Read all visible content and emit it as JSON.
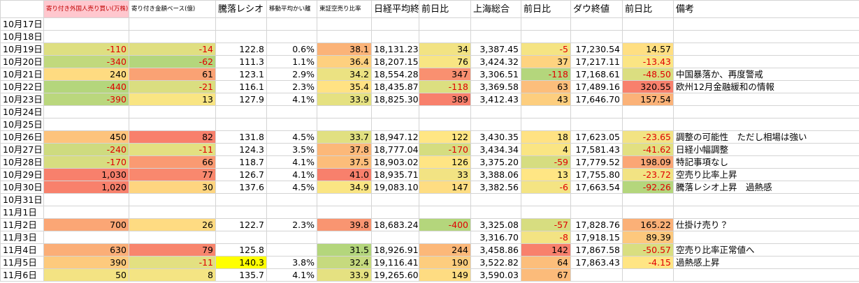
{
  "table": {
    "header": [
      null,
      "寄り付き外国人売り買い(万株)",
      "寄り付き金額ベース(億)",
      "騰落レシオ",
      "移動平均かい離",
      "東証空売り比率",
      "日経平均終値",
      "前日比",
      "上海総合",
      "前日比",
      "ダウ終値",
      "前日比",
      "備考"
    ],
    "header_fill": {
      "col": 1,
      "color": "#ffc7ce",
      "text_color": "#c00000"
    },
    "rows": [
      [
        "10月17日",
        null,
        null,
        null,
        null,
        null,
        null,
        null,
        null,
        null,
        null,
        null,
        null
      ],
      [
        "10月18日",
        null,
        null,
        null,
        null,
        null,
        null,
        null,
        null,
        null,
        null,
        null,
        null
      ],
      [
        "10月19日",
        "-110",
        "-14",
        "122.8",
        "0.6%",
        "38.1",
        "18,131.23",
        "34",
        "3,387.45",
        "-5",
        "17,230.54",
        "14.57",
        null
      ],
      [
        "10月20日",
        "-340",
        "-62",
        "111.3",
        "1.1%",
        "36.4",
        "18,207.15",
        "76",
        "3,424.32",
        "37",
        "17,217.11",
        "-13.43",
        null
      ],
      [
        "10月21日",
        "240",
        "61",
        "123.1",
        "2.9%",
        "34.2",
        "18,554.28",
        "347",
        "3,306.51",
        "-118",
        "17,168.61",
        "-48.50",
        "中国暴落か、再度警戒"
      ],
      [
        "10月22日",
        "-440",
        "-21",
        "116.1",
        "2.3%",
        "35.4",
        "18,435.87",
        "-118",
        "3,369.58",
        "63",
        "17,489.16",
        "320.55",
        "欧州12月金融緩和の情報"
      ],
      [
        "10月23日",
        "-390",
        "13",
        "127.9",
        "4.1%",
        "33.9",
        "18,825.30",
        "389",
        "3,412.43",
        "43",
        "17,646.70",
        "157.54",
        null
      ],
      [
        "10月24日",
        null,
        null,
        null,
        null,
        null,
        null,
        null,
        null,
        null,
        null,
        null,
        null
      ],
      [
        "10月25日",
        null,
        null,
        null,
        null,
        null,
        null,
        null,
        null,
        null,
        null,
        null,
        null
      ],
      [
        "10月26日",
        "450",
        "82",
        "131.8",
        "4.5%",
        "33.7",
        "18,947.12",
        "122",
        "3,430.35",
        "18",
        "17,623.05",
        "-23.65",
        "調整の可能性　ただし相場は強い"
      ],
      [
        "10月27日",
        "-240",
        "-11",
        "124.3",
        "3.5%",
        "37.8",
        "18,777.04",
        "-170",
        "3,434.34",
        "4",
        "17,581.43",
        "-41.62",
        "日経小幅調整"
      ],
      [
        "10月28日",
        "-170",
        "66",
        "118.7",
        "4.1%",
        "37.5",
        "18,903.02",
        "126",
        "3,375.20",
        "-59",
        "17,779.52",
        "198.09",
        "特記事項なし"
      ],
      [
        "10月29日",
        "1,030",
        "77",
        "126.7",
        "4.1%",
        "41.0",
        "18,935.71",
        "33",
        "3,388.06",
        "13",
        "17,755.80",
        "-23.72",
        "空売り比率上昇"
      ],
      [
        "10月30日",
        "1,020",
        "30",
        "137.6",
        "4.5%",
        "34.9",
        "19,083.10",
        "147",
        "3,382.56",
        "-6",
        "17,663.54",
        "-92.26",
        "騰落レシオ上昇　過熱感"
      ],
      [
        "10月31日",
        null,
        null,
        null,
        null,
        null,
        null,
        null,
        null,
        null,
        null,
        null,
        null
      ],
      [
        "11月1日",
        null,
        null,
        null,
        null,
        null,
        null,
        null,
        null,
        null,
        null,
        null,
        null
      ],
      [
        "11月2日",
        "700",
        "26",
        "122.7",
        "2.3%",
        "39.8",
        "18,683.24",
        "-400",
        "3,325.08",
        "-57",
        "17,828.76",
        "165.22",
        "仕掛け売り？"
      ],
      [
        "11月3日",
        null,
        null,
        null,
        null,
        null,
        null,
        null,
        "3,316.70",
        "-8",
        "17,918.15",
        "89.39",
        null
      ],
      [
        "11月4日",
        "630",
        "79",
        "125.8",
        null,
        "31.5",
        "18,926.91",
        "244",
        "3,458.86",
        "142",
        "17,867.58",
        "-50.57",
        "空売り比率正常値へ"
      ],
      [
        "11月5日",
        "390",
        "-11",
        "140.3",
        "3.8%",
        "32.4",
        "19,116.41",
        "190",
        "3,522.82",
        "64",
        "17,863.43",
        "-4.15",
        "過熱感上昇"
      ],
      [
        "11月6日",
        "50",
        "8",
        "135.7",
        "4.1%",
        "33.9",
        "19,265.60",
        "149",
        "3,590.03",
        "67",
        null,
        null,
        null
      ]
    ],
    "scale_columns": [
      1,
      2,
      5,
      7,
      9,
      11
    ],
    "scale_colors": [
      "#b4d67c",
      "#ffe684",
      "#f8806c"
    ],
    "highlight": {
      "row": 19,
      "col": 3,
      "color": "#ffff00"
    }
  }
}
